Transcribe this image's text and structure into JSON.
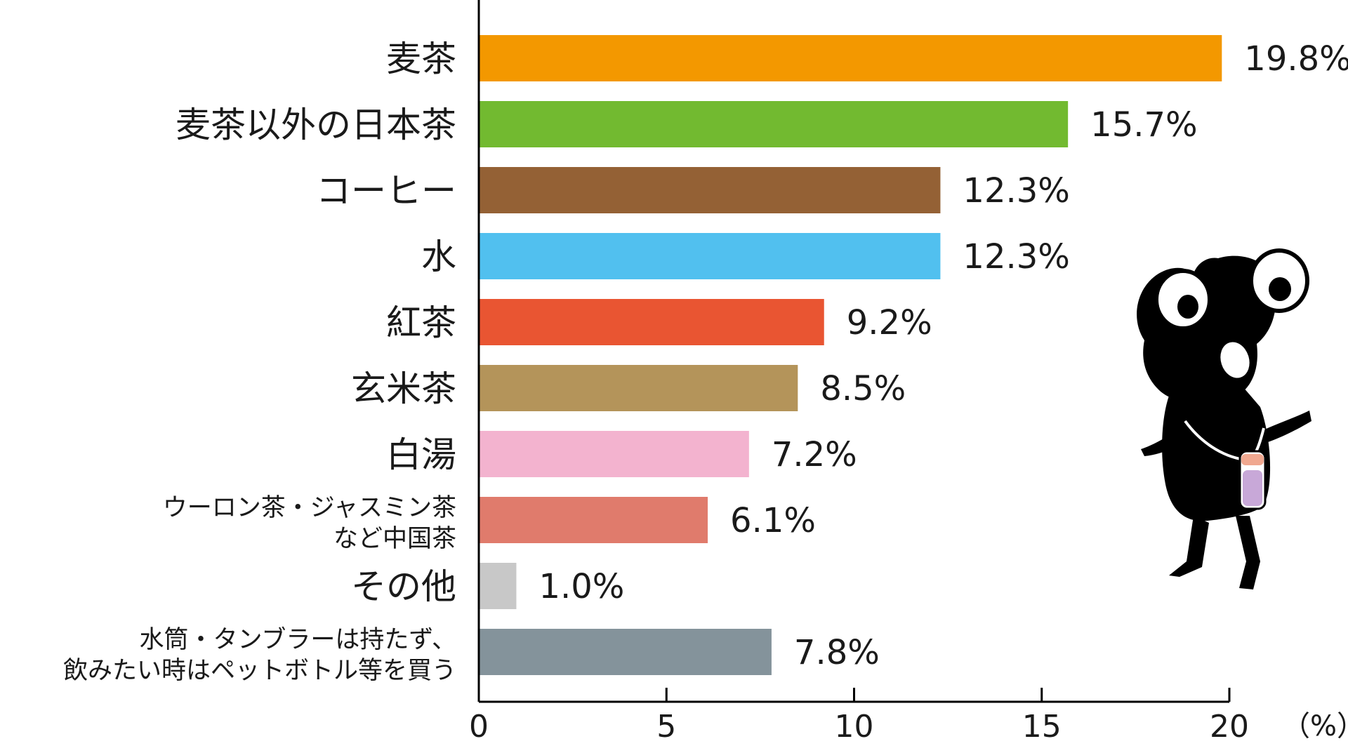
{
  "chart_data": {
    "type": "bar",
    "orientation": "horizontal",
    "categories": [
      [
        "麦茶"
      ],
      [
        "麦茶以外の日本茶"
      ],
      [
        "コーヒー"
      ],
      [
        "水"
      ],
      [
        "紅茶"
      ],
      [
        "玄米茶"
      ],
      [
        "白湯"
      ],
      [
        "ウーロン茶・ジャスミン茶",
        "など中国茶"
      ],
      [
        "その他"
      ],
      [
        "水筒・タンブラーは持たず、",
        "飲みたい時はペットボトル等を買う"
      ]
    ],
    "values": [
      19.8,
      15.7,
      12.3,
      12.3,
      9.2,
      8.5,
      7.2,
      6.1,
      1.0,
      7.8
    ],
    "value_labels": [
      "19.8%",
      "15.7%",
      "12.3%",
      "12.3%",
      "9.2%",
      "8.5%",
      "7.2%",
      "6.1%",
      "1.0%",
      "7.8%"
    ],
    "colors": [
      "#f39800",
      "#72ba30",
      "#946135",
      "#51c0ef",
      "#e95532",
      "#b4945a",
      "#f3b3cf",
      "#e07b6c",
      "#c8c8c8",
      "#84939b"
    ],
    "xlim": [
      0,
      20
    ],
    "xticks": [
      0,
      5,
      10,
      15,
      20
    ],
    "x_unit": "（%）",
    "grid": false,
    "legend": "none"
  },
  "mascot": {
    "icon": "black-frog-mascot-with-bottle",
    "body_color": "#000000",
    "bottle_liquid_color": "#c8a8d8",
    "bottle_cap_color": "#f0a890"
  }
}
